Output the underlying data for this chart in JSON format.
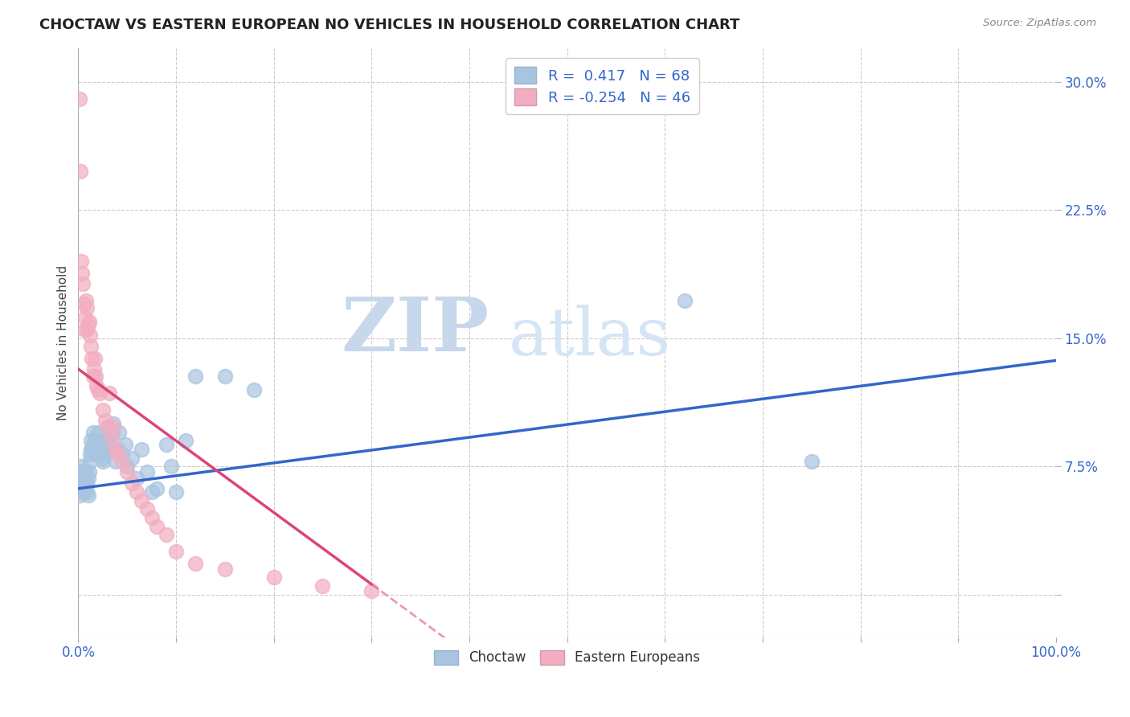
{
  "title": "CHOCTAW VS EASTERN EUROPEAN NO VEHICLES IN HOUSEHOLD CORRELATION CHART",
  "source": "Source: ZipAtlas.com",
  "ylabel": "No Vehicles in Household",
  "yticks": [
    0.0,
    0.075,
    0.15,
    0.225,
    0.3
  ],
  "ytick_labels": [
    "",
    "7.5%",
    "15.0%",
    "22.5%",
    "30.0%"
  ],
  "xlim": [
    0.0,
    1.0
  ],
  "ylim": [
    -0.025,
    0.32
  ],
  "background_color": "#ffffff",
  "watermark_line1": "ZIP",
  "watermark_line2": "atlas",
  "watermark_color": "#ccddf0",
  "choctaw_color": "#a8c4e0",
  "eastern_color": "#f2aec0",
  "choctaw_line_color": "#3366cc",
  "eastern_line_color": "#dd4477",
  "legend_r1": "R =  0.417   N = 68",
  "legend_r2": "R = -0.254   N = 46",
  "choctaw_x": [
    0.001,
    0.002,
    0.002,
    0.003,
    0.003,
    0.003,
    0.004,
    0.004,
    0.005,
    0.005,
    0.006,
    0.006,
    0.007,
    0.007,
    0.008,
    0.008,
    0.009,
    0.009,
    0.01,
    0.01,
    0.011,
    0.012,
    0.012,
    0.013,
    0.013,
    0.014,
    0.015,
    0.015,
    0.016,
    0.017,
    0.018,
    0.019,
    0.02,
    0.021,
    0.022,
    0.023,
    0.024,
    0.025,
    0.026,
    0.027,
    0.028,
    0.03,
    0.031,
    0.032,
    0.033,
    0.035,
    0.036,
    0.038,
    0.04,
    0.042,
    0.045,
    0.048,
    0.05,
    0.055,
    0.06,
    0.065,
    0.07,
    0.075,
    0.08,
    0.09,
    0.095,
    0.1,
    0.11,
    0.12,
    0.15,
    0.18,
    0.62,
    0.75
  ],
  "choctaw_y": [
    0.062,
    0.068,
    0.058,
    0.075,
    0.072,
    0.065,
    0.068,
    0.072,
    0.06,
    0.072,
    0.062,
    0.068,
    0.062,
    0.07,
    0.072,
    0.068,
    0.06,
    0.065,
    0.058,
    0.068,
    0.072,
    0.078,
    0.082,
    0.085,
    0.09,
    0.085,
    0.095,
    0.088,
    0.085,
    0.09,
    0.088,
    0.082,
    0.095,
    0.09,
    0.082,
    0.088,
    0.08,
    0.078,
    0.085,
    0.09,
    0.082,
    0.098,
    0.092,
    0.088,
    0.085,
    0.095,
    0.1,
    0.078,
    0.085,
    0.095,
    0.082,
    0.088,
    0.075,
    0.08,
    0.068,
    0.085,
    0.072,
    0.06,
    0.062,
    0.088,
    0.075,
    0.06,
    0.09,
    0.128,
    0.128,
    0.12,
    0.172,
    0.078
  ],
  "eastern_x": [
    0.001,
    0.002,
    0.003,
    0.004,
    0.005,
    0.006,
    0.006,
    0.007,
    0.008,
    0.009,
    0.009,
    0.01,
    0.011,
    0.012,
    0.013,
    0.014,
    0.015,
    0.016,
    0.017,
    0.018,
    0.019,
    0.02,
    0.022,
    0.025,
    0.028,
    0.03,
    0.032,
    0.034,
    0.036,
    0.038,
    0.04,
    0.045,
    0.05,
    0.055,
    0.06,
    0.065,
    0.07,
    0.075,
    0.08,
    0.09,
    0.1,
    0.12,
    0.15,
    0.2,
    0.25,
    0.3
  ],
  "eastern_y": [
    0.29,
    0.248,
    0.195,
    0.188,
    0.182,
    0.17,
    0.155,
    0.162,
    0.172,
    0.168,
    0.155,
    0.158,
    0.16,
    0.152,
    0.145,
    0.138,
    0.128,
    0.132,
    0.138,
    0.128,
    0.122,
    0.12,
    0.118,
    0.108,
    0.102,
    0.098,
    0.118,
    0.092,
    0.098,
    0.085,
    0.082,
    0.078,
    0.072,
    0.065,
    0.06,
    0.055,
    0.05,
    0.045,
    0.04,
    0.035,
    0.025,
    0.018,
    0.015,
    0.01,
    0.005,
    0.002
  ],
  "choctaw_line_intercept": 0.062,
  "choctaw_line_slope": 0.075,
  "eastern_line_intercept": 0.132,
  "eastern_line_slope": -0.45
}
